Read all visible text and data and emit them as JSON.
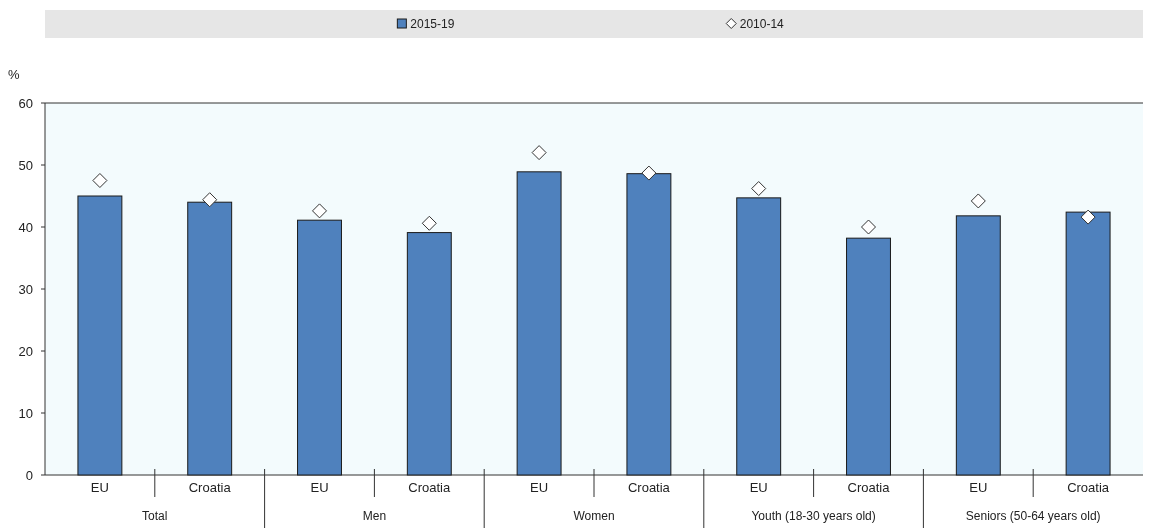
{
  "chart_data": {
    "type": "bar",
    "ylabel": "%",
    "categories": [
      "EU",
      "Croatia",
      "EU",
      "Croatia",
      "EU",
      "Croatia",
      "EU",
      "Croatia",
      "EU",
      "Croatia"
    ],
    "series": [
      {
        "name": "2015-19",
        "color": "#4f81bd",
        "values": [
          45.0,
          44.0,
          41.1,
          39.1,
          48.9,
          48.6,
          44.7,
          38.2,
          41.8,
          42.4
        ]
      },
      {
        "name": "2010-14",
        "type": "scatter",
        "color": "#ffffff",
        "marker": "diamond",
        "values": [
          47.5,
          44.4,
          42.6,
          40.6,
          52.0,
          48.7,
          46.2,
          40.0,
          44.2,
          41.6
        ]
      }
    ],
    "annotations": [
      "Total",
      "Men",
      "Women",
      "Youth (18-30 years old)",
      "Seniors (50-64 years old)"
    ],
    "ylim": [
      0,
      60
    ],
    "yticks": [
      0,
      10,
      20,
      30,
      40,
      50,
      60
    ],
    "grid": false,
    "legend": "top"
  }
}
